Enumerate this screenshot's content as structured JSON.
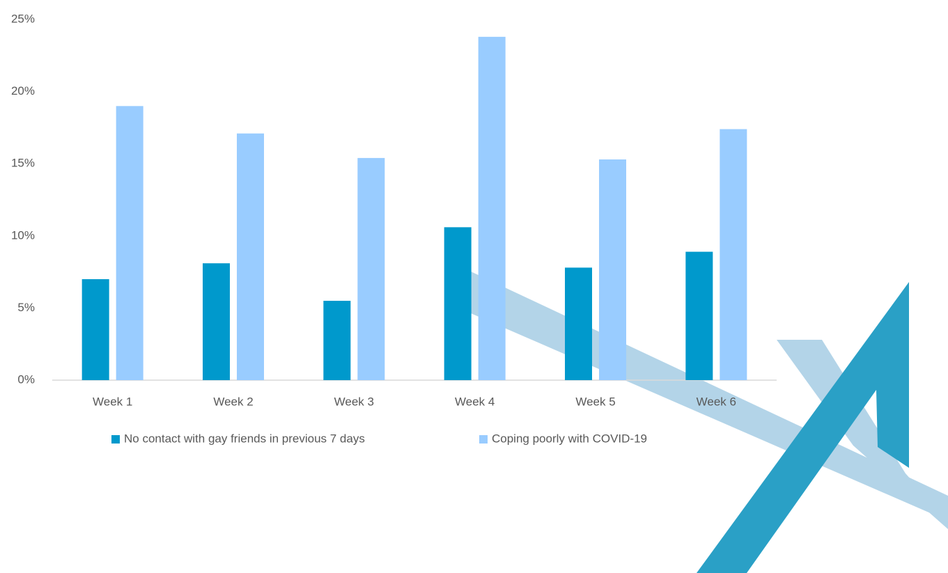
{
  "chart_data": {
    "type": "bar",
    "categories": [
      "Week 1",
      "Week 2",
      "Week 3",
      "Week 4",
      "Week 5",
      "Week 6"
    ],
    "series": [
      {
        "name": "No contact with gay friends in previous 7 days",
        "color": "#0099cc",
        "values": [
          7.0,
          8.1,
          5.5,
          10.6,
          7.8,
          8.9
        ]
      },
      {
        "name": "Coping poorly with COVID-19",
        "color": "#99ccff",
        "values": [
          19.0,
          17.1,
          15.4,
          23.8,
          15.3,
          17.4
        ]
      }
    ],
    "ylim": [
      0,
      25
    ],
    "yticks": [
      {
        "value": 0,
        "label": "0%"
      },
      {
        "value": 5,
        "label": "5%"
      },
      {
        "value": 10,
        "label": "10%"
      },
      {
        "value": 15,
        "label": "15%"
      },
      {
        "value": 20,
        "label": "20%"
      },
      {
        "value": 25,
        "label": "25%"
      }
    ],
    "legend": "bottom"
  }
}
